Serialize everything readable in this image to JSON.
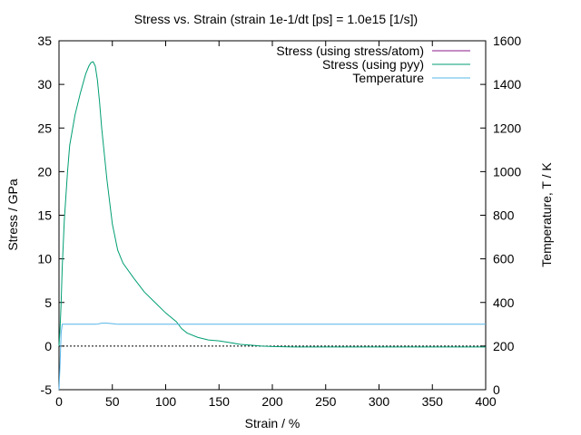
{
  "chart_data": {
    "type": "line",
    "title": "Stress vs. Strain (strain 1e-1/dt [ps] = 1.0e15 [1/s])",
    "xlabel": "Strain / %",
    "ylabel": "Stress / GPa",
    "y2label": "Temperature, T / K",
    "xlim": [
      0,
      400
    ],
    "ylim": [
      -5,
      35
    ],
    "y2lim": [
      0,
      1600
    ],
    "x_ticks": [
      "0",
      "50",
      "100",
      "150",
      "200",
      "250",
      "300",
      "350",
      "400"
    ],
    "y_ticks": [
      "-5",
      "0",
      "5",
      "10",
      "15",
      "20",
      "25",
      "30",
      "35"
    ],
    "y2_ticks": [
      "0",
      "200",
      "400",
      "600",
      "800",
      "1000",
      "1200",
      "1400",
      "1600"
    ],
    "grid": false,
    "legend_position": "top-right",
    "zero_line": true,
    "series": [
      {
        "name": "Stress (using stress/atom)",
        "color": "#8b1a8b",
        "axis": "y",
        "x": [],
        "y": []
      },
      {
        "name": "Stress (using pyy)",
        "color": "#009e73",
        "axis": "y",
        "x": [
          0,
          1,
          2,
          3,
          5,
          8,
          10,
          15,
          20,
          25,
          28,
          30,
          32,
          34,
          36,
          38,
          40,
          45,
          50,
          55,
          60,
          70,
          80,
          90,
          100,
          110,
          115,
          120,
          130,
          140,
          150,
          160,
          170,
          180,
          190,
          200,
          220,
          250,
          300,
          350,
          400
        ],
        "y": [
          0,
          2,
          5,
          9,
          14.5,
          20,
          23,
          26.5,
          29,
          31.2,
          32.1,
          32.5,
          32.6,
          32.1,
          30.5,
          28,
          25,
          19,
          14,
          11,
          9.5,
          7.8,
          6.2,
          5.0,
          3.8,
          2.8,
          2.0,
          1.5,
          1.0,
          0.7,
          0.6,
          0.4,
          0.2,
          0.1,
          0.0,
          -0.05,
          -0.1,
          -0.1,
          -0.1,
          -0.1,
          -0.1
        ]
      },
      {
        "name": "Temperature",
        "color": "#56b4e9",
        "axis": "y2",
        "x": [
          0,
          1,
          2,
          3,
          35,
          40,
          45,
          50,
          55,
          60,
          400
        ],
        "y": [
          0,
          120,
          260,
          300,
          300,
          305,
          305,
          303,
          300,
          300,
          300
        ]
      }
    ]
  }
}
